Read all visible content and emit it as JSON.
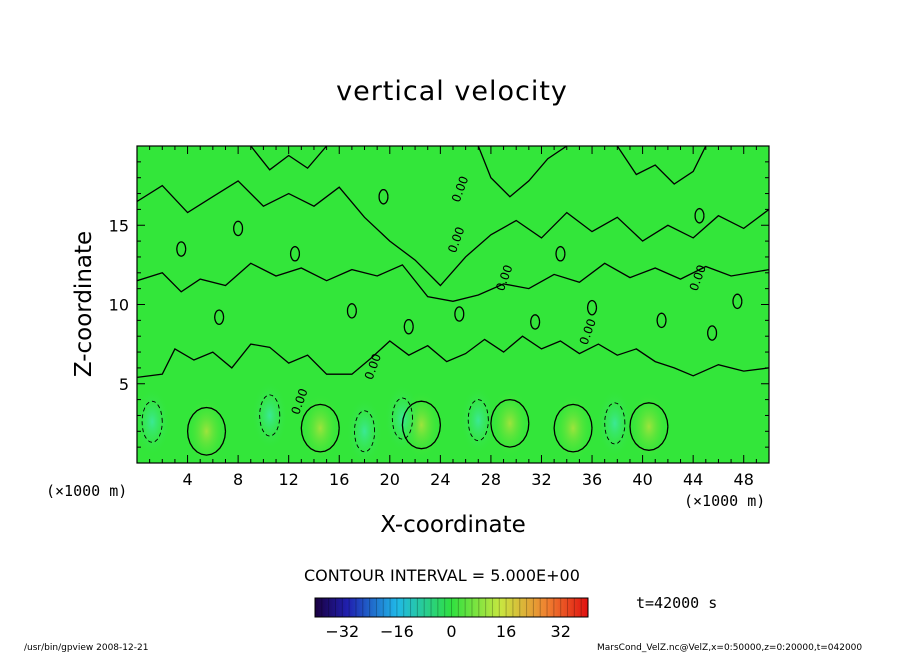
{
  "chart_data": {
    "type": "heatmap",
    "title": "vertical velocity",
    "xlabel": "X-coordinate",
    "ylabel": "Z-coordinate",
    "xunit": "(×1000 m)",
    "xlim": [
      0,
      50
    ],
    "ylim": [
      0,
      20
    ],
    "xticks": [
      "4",
      "8",
      "12",
      "16",
      "20",
      "24",
      "28",
      "32",
      "36",
      "40",
      "44",
      "48"
    ],
    "yticks": [
      "5",
      "10",
      "15"
    ],
    "contour_interval_text": "CONTOUR INTERVAL = 5.000E+00",
    "contour_labels": [
      "0.00"
    ],
    "colorbar": {
      "range": [
        -40,
        40
      ],
      "ticks": [
        "−32",
        "−16",
        "0",
        "16",
        "32"
      ],
      "colormap": "rainbow"
    },
    "time_text": "t=42000 s",
    "grid": false
  },
  "footer": {
    "left": "/usr/bin/gpview   2008-12-21",
    "right": "MarsCond_VelZ.nc@VelZ,x=0:50000,z=0:20000,t=042000"
  },
  "colors": {
    "field_base": "#33e63a",
    "positive_blob": "#9ee43c",
    "negative_blob": "#3be895",
    "contour": "#000000"
  }
}
